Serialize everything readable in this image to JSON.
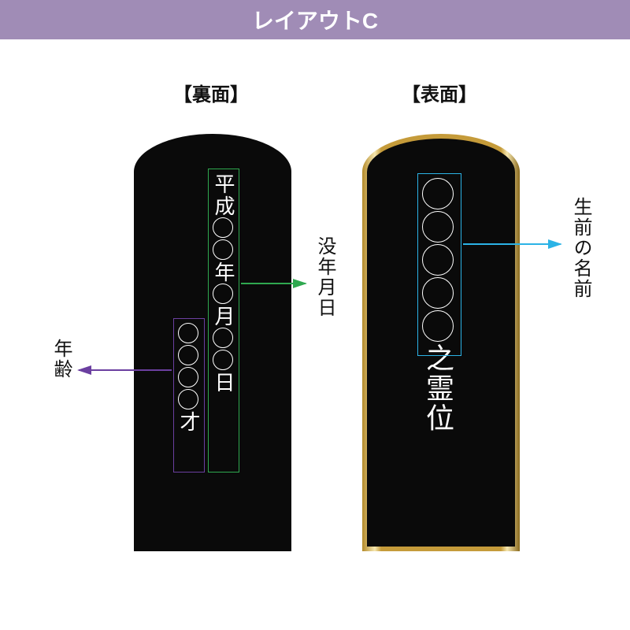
{
  "header": {
    "title": "レイアウトC",
    "bg_color": "#a08cb6",
    "text_color": "#ffffff"
  },
  "sections": {
    "back_title": "【裏面】",
    "front_title": "【表面】"
  },
  "labels": {
    "age": "年齢",
    "death_date": "没年月日",
    "life_name": "生前の名前"
  },
  "tablet_back": {
    "date_col": {
      "prefix": "平成",
      "seg1_circles": 2,
      "mid1": "年",
      "seg2_circles": 1,
      "mid2": "月",
      "seg3_circles": 2,
      "suffix": "日",
      "circle_size": 26,
      "font_size": 26,
      "box_color": "#2fa84f"
    },
    "age_col": {
      "circles": 4,
      "suffix": "才",
      "circle_size": 26,
      "font_size": 26,
      "box_color": "#6b3fa0"
    }
  },
  "tablet_front": {
    "name_col": {
      "circles": 5,
      "suffix": "之霊位",
      "circle_size": 40,
      "font_size": 36,
      "box_color": "#2bb3e6"
    }
  },
  "arrows": {
    "age_color": "#6b3fa0",
    "date_color": "#2fa84f",
    "name_color": "#2bb3e6"
  }
}
